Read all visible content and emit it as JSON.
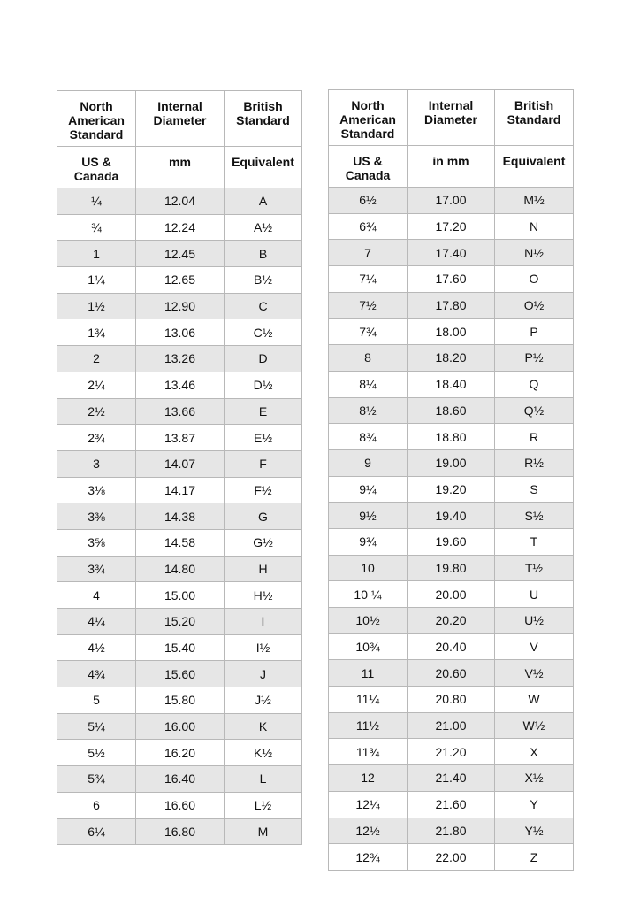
{
  "tables": [
    {
      "header": [
        [
          "North\nAmerican\nStandard",
          "Internal\nDiameter",
          "British\nStandard"
        ],
        [
          "US &\nCanada",
          "mm",
          "Equivalent"
        ]
      ],
      "rows": [
        [
          "¼",
          "12.04",
          "A"
        ],
        [
          "¾",
          "12.24",
          "A½"
        ],
        [
          "1",
          "12.45",
          "B"
        ],
        [
          "1¼",
          "12.65",
          "B½"
        ],
        [
          "1½",
          "12.90",
          "C"
        ],
        [
          "1¾",
          "13.06",
          "C½"
        ],
        [
          "2",
          "13.26",
          "D"
        ],
        [
          "2¼",
          "13.46",
          "D½"
        ],
        [
          "2½",
          "13.66",
          "E"
        ],
        [
          "2¾",
          "13.87",
          "E½"
        ],
        [
          "3",
          "14.07",
          "F"
        ],
        [
          "3⅛",
          "14.17",
          "F½"
        ],
        [
          "3⅜",
          "14.38",
          "G"
        ],
        [
          "3⅝",
          "14.58",
          "G½"
        ],
        [
          "3¾",
          "14.80",
          "H"
        ],
        [
          "4",
          "15.00",
          "H½"
        ],
        [
          "4¼",
          "15.20",
          "I"
        ],
        [
          "4½",
          "15.40",
          "I½"
        ],
        [
          "4¾",
          "15.60",
          "J"
        ],
        [
          "5",
          "15.80",
          "J½"
        ],
        [
          "5¼",
          "16.00",
          "K"
        ],
        [
          "5½",
          "16.20",
          "K½"
        ],
        [
          "5¾",
          "16.40",
          "L"
        ],
        [
          "6",
          "16.60",
          "L½"
        ],
        [
          "6¼",
          "16.80",
          "M"
        ]
      ]
    },
    {
      "header": [
        [
          "North\nAmerican\nStandard",
          "Internal\nDiameter",
          "British\nStandard"
        ],
        [
          "US &\nCanada",
          "in mm",
          "Equivalent"
        ]
      ],
      "rows": [
        [
          "6½",
          "17.00",
          "M½"
        ],
        [
          "6¾",
          "17.20",
          "N"
        ],
        [
          "7",
          "17.40",
          "N½"
        ],
        [
          "7¼",
          "17.60",
          "O"
        ],
        [
          "7½",
          "17.80",
          "O½"
        ],
        [
          "7¾",
          "18.00",
          "P"
        ],
        [
          "8",
          "18.20",
          "P½"
        ],
        [
          "8¼",
          "18.40",
          "Q"
        ],
        [
          "8½",
          "18.60",
          "Q½"
        ],
        [
          "8¾",
          "18.80",
          "R"
        ],
        [
          "9",
          "19.00",
          "R½"
        ],
        [
          "9¼",
          "19.20",
          "S"
        ],
        [
          "9½",
          "19.40",
          "S½"
        ],
        [
          "9¾",
          "19.60",
          "T"
        ],
        [
          "10",
          "19.80",
          "T½"
        ],
        [
          "10 ¼",
          "20.00",
          "U"
        ],
        [
          "10½",
          "20.20",
          "U½"
        ],
        [
          "10¾",
          "20.40",
          "V"
        ],
        [
          "11",
          "20.60",
          "V½"
        ],
        [
          "11¼",
          "20.80",
          "W"
        ],
        [
          "11½",
          "21.00",
          "W½"
        ],
        [
          "11¾",
          "21.20",
          "X"
        ],
        [
          "12",
          "21.40",
          "X½"
        ],
        [
          "12¼",
          "21.60",
          "Y"
        ],
        [
          "12½",
          "21.80",
          "Y½"
        ],
        [
          "12¾",
          "22.00",
          "Z"
        ]
      ]
    }
  ]
}
